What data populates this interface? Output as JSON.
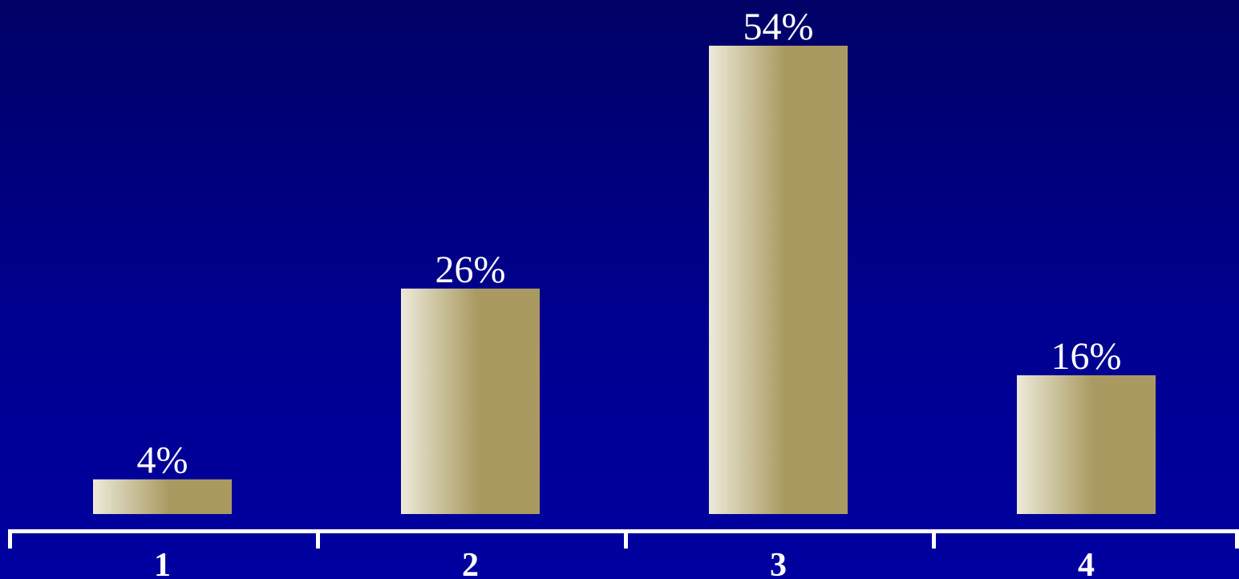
{
  "chart_data": {
    "type": "bar",
    "categories": [
      "1",
      "2",
      "3",
      "4"
    ],
    "values": [
      4,
      26,
      54,
      16
    ],
    "value_labels": [
      "4%",
      "26%",
      "54%",
      "16%"
    ],
    "title": "",
    "xlabel": "",
    "ylabel": "",
    "ylim": [
      0,
      54
    ],
    "grid": false,
    "legend": "none"
  },
  "colors": {
    "background_top": "#000066",
    "background_bottom": "#0000a0",
    "bar_light": "#ecead9",
    "bar_dark": "#aa9a61",
    "axis": "#ffffff",
    "text": "#ffffff"
  }
}
